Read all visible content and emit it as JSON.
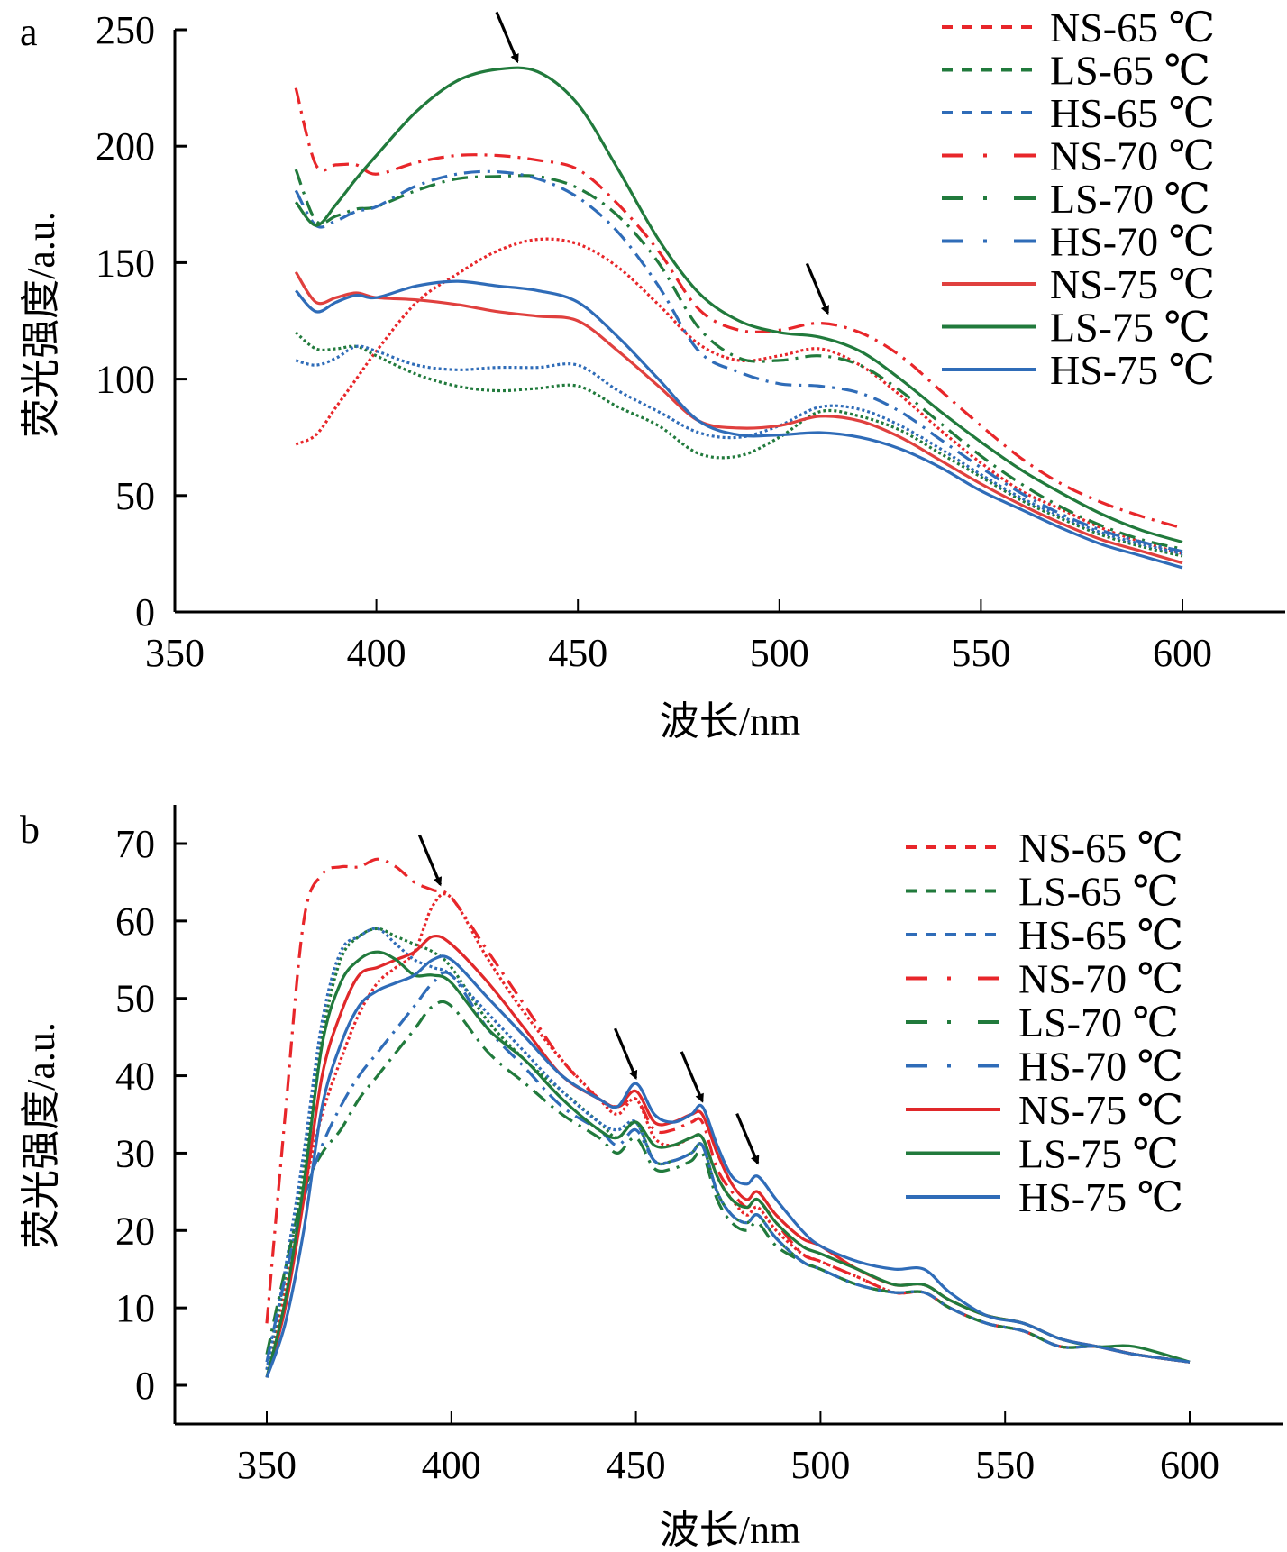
{
  "chart_data": [
    {
      "type": "line",
      "panel": "a",
      "title": "",
      "xlabel": "波长/nm",
      "ylabel": "荧光强度/a.u.",
      "xlim": [
        350,
        625
      ],
      "ylim": [
        0,
        250
      ],
      "xticks": [
        350,
        400,
        450,
        500,
        550,
        600
      ],
      "yticks": [
        0,
        50,
        100,
        150,
        200,
        250
      ],
      "grid": false,
      "legend_position": "top-right",
      "annotations": [
        {
          "type": "arrow",
          "points_to": [
            435,
            234
          ]
        },
        {
          "type": "arrow",
          "points_to": [
            512,
            126
          ]
        }
      ],
      "x": [
        380,
        385,
        390,
        395,
        400,
        410,
        420,
        430,
        440,
        450,
        460,
        470,
        480,
        490,
        500,
        510,
        520,
        530,
        540,
        550,
        560,
        570,
        580,
        590,
        600
      ],
      "series": [
        {
          "name": "NS-65 ℃",
          "color": "#e8262a",
          "style": "dotted",
          "values": [
            72,
            76,
            88,
            100,
            112,
            133,
            145,
            155,
            160,
            158,
            148,
            132,
            115,
            108,
            110,
            113,
            106,
            93,
            78,
            64,
            52,
            44,
            36,
            30,
            25
          ]
        },
        {
          "name": "LS-65 ℃",
          "color": "#217a3c",
          "style": "dotted",
          "values": [
            120,
            113,
            113,
            114,
            110,
            102,
            97,
            95,
            96,
            97,
            88,
            80,
            68,
            67,
            75,
            86,
            84,
            78,
            68,
            58,
            48,
            40,
            33,
            28,
            24
          ]
        },
        {
          "name": "HS-65 ℃",
          "color": "#2f6cb8",
          "style": "dotted",
          "values": [
            108,
            106,
            109,
            114,
            112,
            106,
            104,
            105,
            105,
            106,
            95,
            86,
            77,
            75,
            80,
            88,
            87,
            80,
            70,
            59,
            49,
            41,
            34,
            29,
            25
          ]
        },
        {
          "name": "NS-70 ℃",
          "color": "#e8262a",
          "style": "dashdot",
          "values": [
            225,
            192,
            192,
            192,
            188,
            193,
            196,
            196,
            194,
            190,
            175,
            155,
            130,
            121,
            121,
            124,
            120,
            110,
            95,
            80,
            66,
            55,
            47,
            41,
            36
          ]
        },
        {
          "name": "LS-70 ℃",
          "color": "#217a3c",
          "style": "dashdot",
          "values": [
            190,
            168,
            170,
            173,
            174,
            181,
            186,
            187,
            187,
            182,
            170,
            150,
            122,
            109,
            108,
            110,
            106,
            95,
            81,
            67,
            55,
            45,
            37,
            31,
            27
          ]
        },
        {
          "name": "HS-70 ℃",
          "color": "#2f6cb8",
          "style": "dashdot",
          "values": [
            181,
            166,
            168,
            172,
            174,
            183,
            188,
            189,
            186,
            178,
            163,
            140,
            112,
            103,
            98,
            97,
            94,
            86,
            74,
            62,
            51,
            42,
            35,
            30,
            26
          ]
        },
        {
          "name": "NS-75 ℃",
          "color": "#e0403e",
          "style": "solid",
          "values": [
            146,
            133,
            135,
            137,
            135,
            134,
            132,
            129,
            127,
            125,
            112,
            97,
            82,
            79,
            80,
            84,
            82,
            75,
            65,
            55,
            46,
            38,
            31,
            26,
            21
          ]
        },
        {
          "name": "LS-75 ℃",
          "color": "#217a3c",
          "style": "solid",
          "values": [
            176,
            166,
            175,
            186,
            196,
            215,
            228,
            233,
            232,
            218,
            190,
            160,
            137,
            125,
            120,
            118,
            112,
            100,
            86,
            73,
            61,
            51,
            42,
            35,
            30
          ]
        },
        {
          "name": "HS-75 ℃",
          "color": "#2f6cb8",
          "style": "solid",
          "values": [
            138,
            129,
            133,
            136,
            135,
            140,
            142,
            140,
            138,
            133,
            118,
            100,
            82,
            76,
            76,
            77,
            75,
            70,
            62,
            52,
            44,
            36,
            29,
            24,
            19
          ]
        }
      ]
    },
    {
      "type": "line",
      "panel": "b",
      "title": "",
      "xlabel": "波长/nm",
      "ylabel": "荧光强度/a.u.",
      "xlim": [
        325,
        625
      ],
      "ylim": [
        -5,
        75
      ],
      "xticks": [
        350,
        400,
        450,
        500,
        550,
        600
      ],
      "yticks": [
        0,
        10,
        20,
        30,
        40,
        50,
        60,
        70
      ],
      "grid": false,
      "legend_position": "top-right",
      "annotations": [
        {
          "type": "arrow",
          "points_to": [
            397,
            64
          ]
        },
        {
          "type": "arrow",
          "points_to": [
            450,
            39
          ]
        },
        {
          "type": "arrow",
          "points_to": [
            468,
            36
          ]
        },
        {
          "type": "arrow",
          "points_to": [
            483,
            28
          ]
        }
      ],
      "x": [
        350,
        355,
        360,
        365,
        370,
        375,
        380,
        385,
        390,
        395,
        400,
        410,
        420,
        430,
        440,
        445,
        450,
        455,
        460,
        465,
        468,
        472,
        476,
        480,
        483,
        488,
        495,
        500,
        510,
        520,
        528,
        535,
        545,
        555,
        565,
        575,
        585,
        600
      ],
      "series": [
        {
          "name": "NS-65 ℃",
          "color": "#e8262a",
          "style": "dotted",
          "values": [
            2,
            12,
            25,
            35,
            42,
            48,
            52,
            54,
            56,
            62,
            63,
            55,
            48,
            42,
            37,
            35,
            37,
            32,
            31,
            32,
            32,
            27,
            24,
            22,
            23,
            20,
            17,
            16,
            14,
            12,
            12,
            10,
            8,
            7,
            5,
            5,
            4,
            3
          ]
        },
        {
          "name": "LS-65 ℃",
          "color": "#217a3c",
          "style": "dotted",
          "values": [
            2,
            14,
            28,
            45,
            55,
            58,
            59,
            58,
            57,
            56,
            54,
            47,
            42,
            38,
            34,
            32,
            34,
            29,
            29,
            30,
            31,
            25,
            22,
            21,
            22,
            19,
            16,
            15,
            13,
            12,
            12,
            10,
            8,
            7,
            5,
            5,
            4,
            3
          ]
        },
        {
          "name": "HS-65 ℃",
          "color": "#2f6cb8",
          "style": "dotted",
          "values": [
            2,
            15,
            30,
            47,
            56,
            58,
            59,
            57,
            55,
            54,
            53,
            48,
            43,
            38,
            34,
            33,
            34,
            29,
            29,
            30,
            31,
            25,
            22,
            21,
            22,
            19,
            16,
            15,
            13,
            12,
            12,
            10,
            8,
            7,
            5,
            5,
            4,
            3
          ]
        },
        {
          "name": "NS-70 ℃",
          "color": "#e8262a",
          "style": "dashdot",
          "values": [
            8,
            35,
            60,
            66,
            67,
            67,
            68,
            67,
            65,
            64,
            63,
            56,
            49,
            42,
            37,
            36,
            37,
            33,
            33,
            34,
            34,
            28,
            25,
            23,
            24,
            21,
            17,
            16,
            14,
            12,
            12,
            10,
            8,
            7,
            5,
            5,
            4,
            3
          ]
        },
        {
          "name": "LS-70 ℃",
          "color": "#217a3c",
          "style": "dashdot",
          "values": [
            4,
            15,
            25,
            30,
            33,
            37,
            40,
            43,
            46,
            49,
            49,
            43,
            39,
            35,
            32,
            30,
            32,
            28,
            28,
            29,
            30,
            24,
            21,
            20,
            21,
            18,
            16,
            15,
            13,
            12,
            12,
            10,
            8,
            7,
            5,
            5,
            4,
            3
          ]
        },
        {
          "name": "HS-70 ℃",
          "color": "#2f6cb8",
          "style": "dashdot",
          "values": [
            3,
            14,
            24,
            31,
            36,
            40,
            43,
            46,
            49,
            52,
            53,
            46,
            41,
            36,
            33,
            31,
            33,
            29,
            29,
            30,
            31,
            25,
            22,
            21,
            22,
            19,
            16,
            15,
            13,
            12,
            12,
            10,
            8,
            7,
            5,
            5,
            4,
            3
          ]
        },
        {
          "name": "NS-75 ℃",
          "color": "#e0282a",
          "style": "solid",
          "values": [
            1,
            10,
            24,
            40,
            48,
            53,
            54,
            55,
            56,
            58,
            57,
            52,
            46,
            40,
            37,
            36,
            38,
            34,
            34,
            35,
            35,
            30,
            26,
            24,
            25,
            22,
            19,
            18,
            15,
            13,
            13,
            11,
            9,
            8,
            6,
            5,
            4,
            3
          ]
        },
        {
          "name": "LS-75 ℃",
          "color": "#217a3c",
          "style": "solid",
          "values": [
            1,
            11,
            26,
            44,
            52,
            55,
            56,
            55,
            53,
            53,
            52,
            46,
            42,
            37,
            33,
            32,
            34,
            31,
            31,
            32,
            32,
            27,
            24,
            23,
            24,
            21,
            18,
            17,
            15,
            13,
            13,
            11,
            9,
            8,
            6,
            5,
            5,
            3
          ]
        },
        {
          "name": "HS-75 ℃",
          "color": "#2f6cb8",
          "style": "solid",
          "values": [
            1,
            8,
            20,
            36,
            44,
            49,
            51,
            52,
            53,
            55,
            55,
            50,
            45,
            40,
            37,
            36,
            39,
            35,
            34,
            35,
            36,
            31,
            27,
            26,
            27,
            24,
            20,
            18,
            16,
            15,
            15,
            12,
            9,
            8,
            6,
            5,
            4,
            3
          ]
        }
      ]
    }
  ]
}
